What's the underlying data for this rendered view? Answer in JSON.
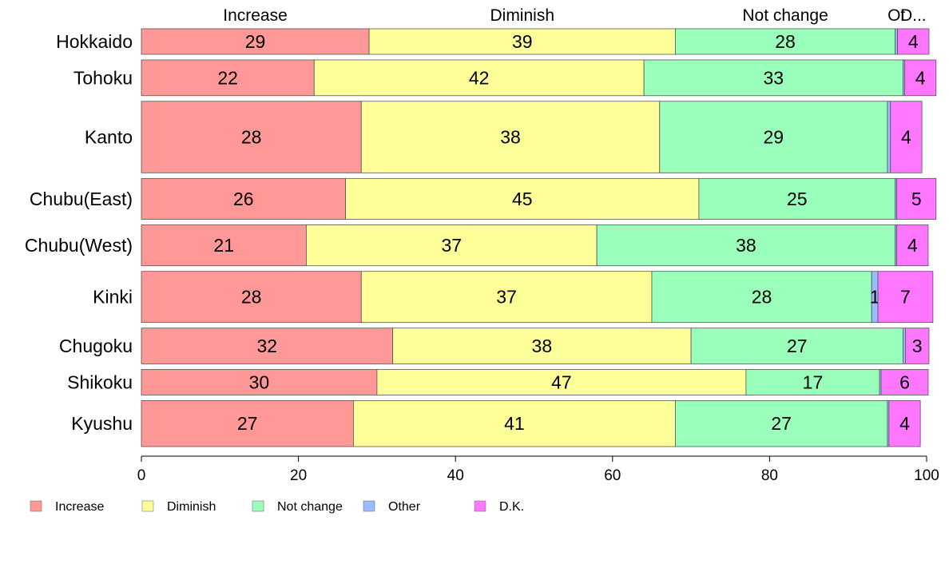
{
  "chart_data": {
    "type": "bar",
    "orientation": "horizontal",
    "stacked": true,
    "title": "",
    "xlabel": "",
    "ylabel": "",
    "xlim": [
      0,
      100
    ],
    "x_ticks": [
      "0",
      "20",
      "40",
      "60",
      "80",
      "100"
    ],
    "grid": false,
    "legend_position": "bottom",
    "top_labels": [
      "Increase",
      "Diminish",
      "Not change",
      "Ot",
      "D..."
    ],
    "categories": [
      "Hokkaido",
      "Tohoku",
      "Kanto",
      "Chubu(East)",
      "Chubu(West)",
      "Kinki",
      "Chugoku",
      "Shikoku",
      "Kyushu"
    ],
    "series": [
      {
        "name": "Increase",
        "color": "#ff9896",
        "values": [
          29,
          22,
          28,
          26,
          21,
          28,
          32,
          30,
          27
        ]
      },
      {
        "name": "Diminish",
        "color": "#ffff99",
        "values": [
          39,
          42,
          38,
          45,
          37,
          37,
          38,
          47,
          41
        ]
      },
      {
        "name": "Not change",
        "color": "#99ffbb",
        "values": [
          28,
          33,
          29,
          25,
          38,
          28,
          27,
          17,
          27
        ]
      },
      {
        "name": "Other",
        "color": "#99bbff",
        "values": [
          0.3,
          0.2,
          0.4,
          0.2,
          0.2,
          0.8,
          0.3,
          0.2,
          0.2
        ]
      },
      {
        "name": "D.K.",
        "color": "#ff77ff",
        "values": [
          4,
          4,
          4,
          5,
          4,
          7,
          3,
          6,
          4
        ]
      }
    ],
    "data_labels": [
      [
        "29",
        "39",
        "28",
        "",
        "4"
      ],
      [
        "22",
        "42",
        "33",
        "",
        "4"
      ],
      [
        "28",
        "38",
        "29",
        "",
        "4"
      ],
      [
        "26",
        "45",
        "25",
        "",
        "5"
      ],
      [
        "21",
        "37",
        "38",
        "",
        "4"
      ],
      [
        "28",
        "37",
        "28",
        "1",
        "7"
      ],
      [
        "32",
        "38",
        "27",
        "",
        "3"
      ],
      [
        "30",
        "47",
        "17",
        "",
        "6"
      ],
      [
        "27",
        "41",
        "27",
        "",
        "4"
      ]
    ],
    "row_weights": [
      5,
      7,
      14,
      8,
      8,
      10,
      7,
      5,
      9
    ]
  }
}
